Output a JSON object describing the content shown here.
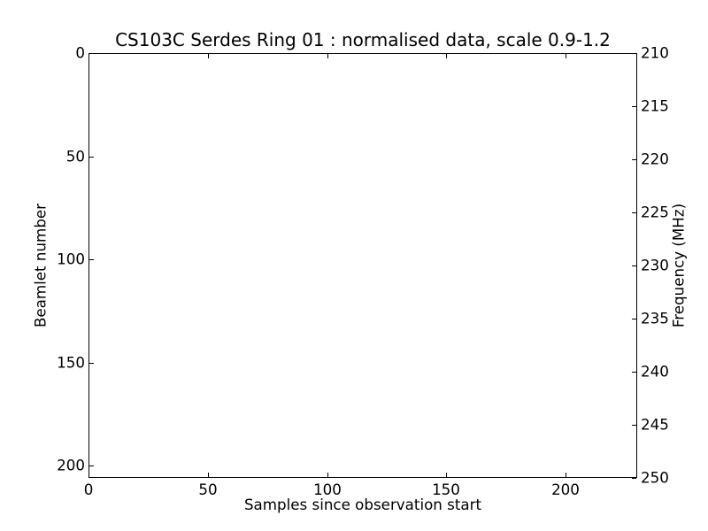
{
  "figure": {
    "background": "#ffffff",
    "axis_color": "#000000",
    "text_color": "#000000"
  },
  "chart_data": {
    "type": "heatmap",
    "title": "CS103C Serdes Ring 01 : normalised data, scale 0.9-1.2",
    "xlabel": "Samples since observation start",
    "ylabel_left": "Beamlet number",
    "ylabel_right": "Frequency (MHz)",
    "xlim": [
      0,
      230
    ],
    "ylim_left": [
      0,
      206
    ],
    "ylim_right": [
      210,
      250
    ],
    "y_axis_inverted": true,
    "xticks": [
      0,
      50,
      100,
      150,
      200
    ],
    "yticks_left": [
      0,
      50,
      100,
      150,
      200
    ],
    "yticks_right": [
      210,
      215,
      220,
      225,
      230,
      235,
      240,
      245,
      250
    ],
    "color_scale_range": [
      0.9,
      1.2
    ],
    "grid": false,
    "legend": null,
    "series": [],
    "data_points_visible": false,
    "plot_area_fill": "#ffffff"
  }
}
